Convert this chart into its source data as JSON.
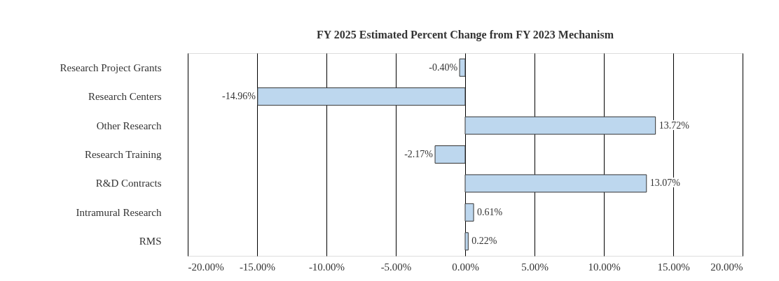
{
  "chart_data": {
    "type": "bar",
    "orientation": "horizontal",
    "title": "FY 2025 Estimated Percent Change from FY 2023 Mechanism",
    "categories": [
      "Research Project Grants",
      "Research Centers",
      "Other Research",
      "Research Training",
      "R&D Contracts",
      "Intramural Research",
      "RMS"
    ],
    "values": [
      -0.4,
      -14.96,
      13.72,
      -2.17,
      13.07,
      0.61,
      0.22
    ],
    "value_labels": [
      "-0.40%",
      "-14.96%",
      "13.72%",
      "-2.17%",
      "13.07%",
      "0.61%",
      "0.22%"
    ],
    "color": "#bdd7ee",
    "xlim": [
      -20,
      20
    ],
    "xticks": [
      {
        "value": -20,
        "label": "-20.00%"
      },
      {
        "value": -15,
        "label": "-15.00%"
      },
      {
        "value": -10,
        "label": "-10.00%"
      },
      {
        "value": -5,
        "label": "-5.00%"
      },
      {
        "value": 0,
        "label": "0.00%"
      },
      {
        "value": 5,
        "label": "5.00%"
      },
      {
        "value": 10,
        "label": "10.00%"
      },
      {
        "value": 15,
        "label": "15.00%"
      },
      {
        "value": 20,
        "label": "20.00%"
      }
    ],
    "grid": "x"
  }
}
